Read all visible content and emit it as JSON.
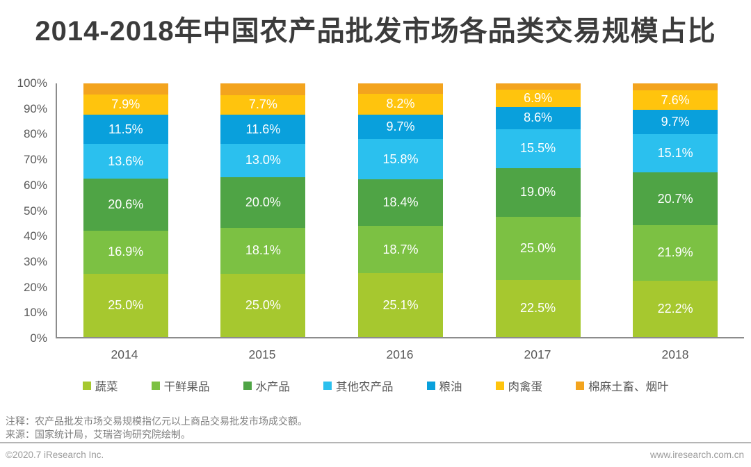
{
  "title": "2014-2018年中国农产品批发市场各品类交易规模占比",
  "chart_data": {
    "type": "bar",
    "stacked": true,
    "title": "2014-2018年中国农产品批发市场各品类交易规模占比",
    "categories": [
      "2014",
      "2015",
      "2016",
      "2017",
      "2018"
    ],
    "series": [
      {
        "name": "蔬菜",
        "color": "#A6C82F",
        "values": [
          25.0,
          25.0,
          25.1,
          22.5,
          22.2
        ],
        "labels_shown": true
      },
      {
        "name": "干鲜果品",
        "color": "#7CC143",
        "values": [
          16.9,
          18.1,
          18.7,
          25.0,
          21.9
        ],
        "labels_shown": true
      },
      {
        "name": "水产品",
        "color": "#4FA445",
        "values": [
          20.6,
          20.0,
          18.4,
          19.0,
          20.7
        ],
        "labels_shown": true
      },
      {
        "name": "其他农产品",
        "color": "#2BC0EE",
        "values": [
          13.6,
          13.0,
          15.8,
          15.5,
          15.1
        ],
        "labels_shown": true
      },
      {
        "name": "粮油",
        "color": "#09A0DC",
        "values": [
          11.5,
          11.6,
          9.7,
          8.6,
          9.7
        ],
        "labels_shown": true
      },
      {
        "name": "肉禽蛋",
        "color": "#FFC40D",
        "values": [
          7.9,
          7.7,
          8.2,
          6.9,
          7.6
        ],
        "labels_shown": true
      },
      {
        "name": "棉麻土畜、烟叶",
        "color": "#F3A41E",
        "values": [
          4.5,
          4.6,
          4.1,
          2.5,
          2.8
        ],
        "labels_shown": false
      }
    ],
    "xlabel": "",
    "ylabel": "",
    "ylim": [
      0,
      100
    ],
    "y_ticks": [
      "0%",
      "10%",
      "20%",
      "30%",
      "40%",
      "50%",
      "60%",
      "70%",
      "80%",
      "90%",
      "100%"
    ],
    "grid": false,
    "legend_position": "bottom",
    "value_label_suffix": "%"
  },
  "notes": {
    "line1": "注释：农产品批发市场交易规模指亿元以上商品交易批发市场成交额。",
    "line2": "来源：国家统计局，艾瑞咨询研究院绘制。"
  },
  "footer": {
    "copyright": "©2020.7 iResearch Inc.",
    "website": "www.iresearch.com.cn"
  }
}
